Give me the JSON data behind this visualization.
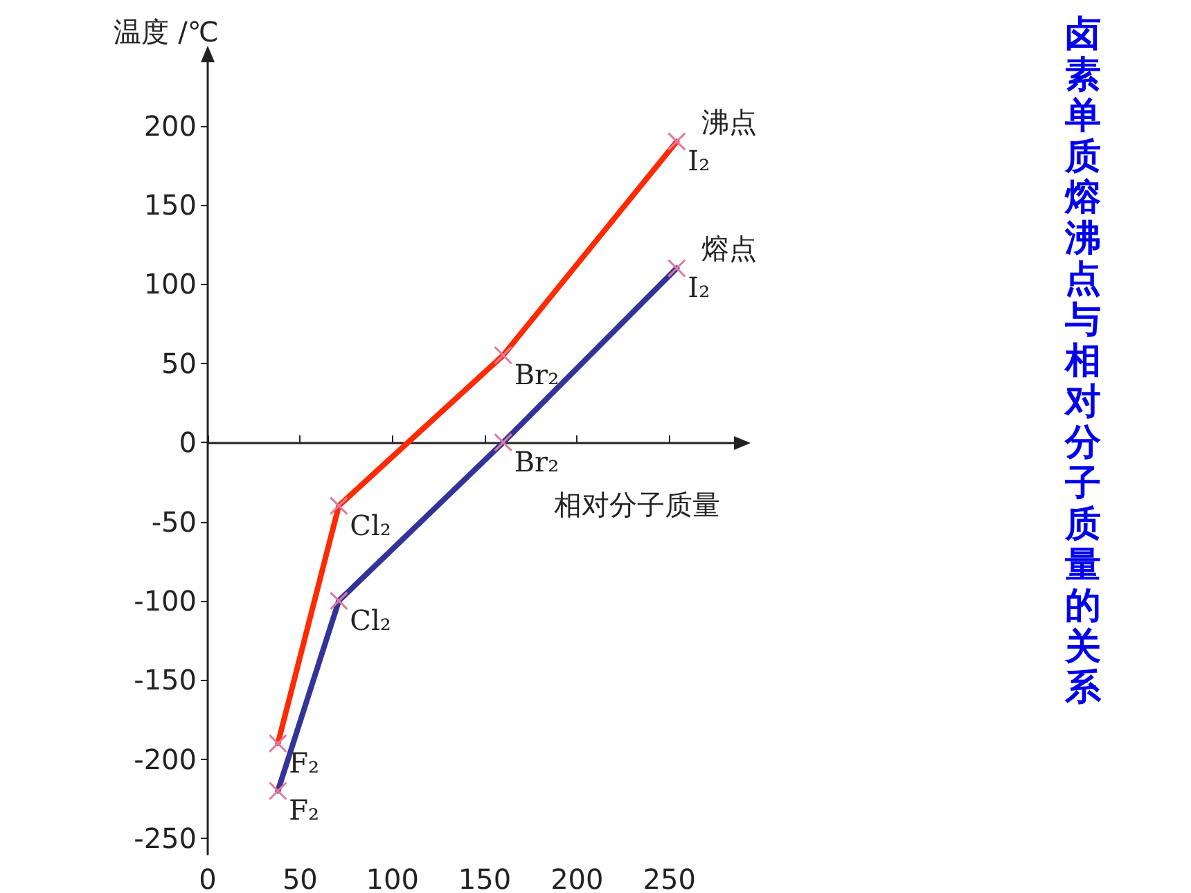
{
  "chart_data": {
    "type": "line",
    "title": "卤素单质熔沸点与相对分子质量的关系",
    "xlabel": "相对分子质量",
    "ylabel": "温度 /℃",
    "xlim": [
      0,
      285
    ],
    "xticks": [
      0,
      50,
      100,
      150,
      200,
      250
    ],
    "ylim": [
      -260,
      240
    ],
    "yticks": [
      -250,
      -200,
      -150,
      -100,
      -50,
      0,
      50,
      100,
      150,
      200
    ],
    "legend": false,
    "marker": "cross",
    "line_style": "solid",
    "series": [
      {
        "name": "沸点",
        "color": "#ff2a00",
        "x": [
          38,
          71,
          160,
          254
        ],
        "values": [
          -190,
          -40,
          55,
          190
        ]
      },
      {
        "name": "熔点",
        "color": "#333399",
        "x": [
          38,
          71,
          160,
          254
        ],
        "values": [
          -220,
          -100,
          0,
          110
        ]
      }
    ],
    "annotations": [
      {
        "text": "F₂",
        "x": 38,
        "y": -190
      },
      {
        "text": "Cl₂",
        "x": 71,
        "y": -40
      },
      {
        "text": "Br₂",
        "x": 160,
        "y": 55
      },
      {
        "text": "I₂",
        "x": 254,
        "y": 190
      },
      {
        "text": "F₂",
        "x": 38,
        "y": -220
      },
      {
        "text": "Cl₂",
        "x": 71,
        "y": -100
      },
      {
        "text": "Br₂",
        "x": 160,
        "y": 0
      },
      {
        "text": "I₂",
        "x": 254,
        "y": 110
      }
    ]
  }
}
